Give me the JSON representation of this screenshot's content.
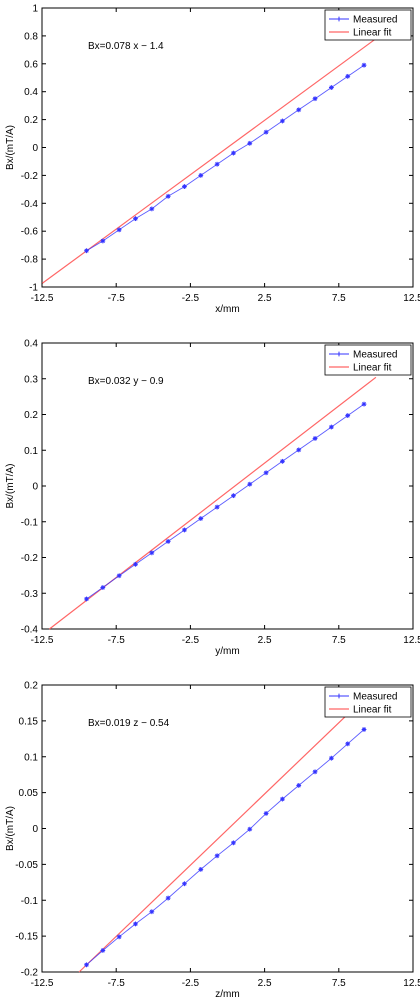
{
  "chart_data": [
    {
      "type": "line",
      "xlabel": "x/mm",
      "ylabel": "Bx/(mT/A)",
      "annotation": "Bx=0.078 x − 1.4",
      "xlim": [
        -12.5,
        12.5
      ],
      "ylim": [
        -1,
        1
      ],
      "xticks": [
        "-12.5",
        "-7.5",
        "-2.5",
        "2.5",
        "7.5",
        "12.5"
      ],
      "yticks": [
        "1",
        "0.8",
        "0.6",
        "0.4",
        "0.2",
        "0",
        "-0.2",
        "-0.4",
        "-0.6",
        "-0.8",
        "-1"
      ],
      "legend": [
        "Measured",
        "Linear fit"
      ],
      "legend_position": "top-right",
      "series": [
        {
          "name": "Measured",
          "marker": "asterisk",
          "color": "#3333ff",
          "x": [
            -9.5,
            -8.4,
            -7.3,
            -6.2,
            -5.1,
            -4.0,
            -2.9,
            -1.8,
            -0.7,
            0.4,
            1.5,
            2.6,
            3.7,
            4.8,
            5.9,
            7.0,
            8.1,
            9.2
          ],
          "y": [
            -0.74,
            -0.67,
            -0.59,
            -0.51,
            -0.44,
            -0.35,
            -0.28,
            -0.2,
            -0.12,
            -0.04,
            0.03,
            0.11,
            0.19,
            0.27,
            0.35,
            0.43,
            0.51,
            0.59
          ]
        },
        {
          "name": "Linear fit",
          "color": "#ff6666",
          "x": [
            -12.5,
            10.0
          ],
          "y": [
            -0.975,
            0.78
          ]
        }
      ]
    },
    {
      "type": "line",
      "xlabel": "y/mm",
      "ylabel": "Bx/(mT/A)",
      "annotation": "Bx=0.032 y − 0.9",
      "xlim": [
        -12.5,
        12.5
      ],
      "ylim": [
        -0.4,
        0.4
      ],
      "xticks": [
        "-12.5",
        "-7.5",
        "-2.5",
        "2.5",
        "7.5",
        "12.5"
      ],
      "yticks": [
        "0.4",
        "0.3",
        "0.2",
        "0.1",
        "0",
        "-0.1",
        "-0.2",
        "-0.3",
        "-0.4"
      ],
      "legend": [
        "Measured",
        "Linear fit"
      ],
      "legend_position": "top-right",
      "series": [
        {
          "name": "Measured",
          "marker": "asterisk",
          "color": "#3333ff",
          "x": [
            -9.5,
            -8.4,
            -7.3,
            -6.2,
            -5.1,
            -4.0,
            -2.9,
            -1.8,
            -0.7,
            0.4,
            1.5,
            2.6,
            3.7,
            4.8,
            5.9,
            7.0,
            8.1,
            9.2
          ],
          "y": [
            -0.316,
            -0.284,
            -0.251,
            -0.219,
            -0.187,
            -0.155,
            -0.123,
            -0.091,
            -0.059,
            -0.027,
            0.005,
            0.037,
            0.069,
            0.101,
            0.133,
            0.165,
            0.197,
            0.229
          ]
        },
        {
          "name": "Linear fit",
          "color": "#ff6666",
          "x": [
            -12.0,
            10.0
          ],
          "y": [
            -0.4,
            0.304
          ]
        }
      ]
    },
    {
      "type": "line",
      "xlabel": "z/mm",
      "ylabel": "Bx/(mT/A)",
      "annotation": "Bx=0.019 z − 0.54",
      "xlim": [
        -12.5,
        12.5
      ],
      "ylim": [
        -0.2,
        0.2
      ],
      "xticks": [
        "-12.5",
        "-7.5",
        "-2.5",
        "2.5",
        "7.5",
        "12.5"
      ],
      "yticks": [
        "0.2",
        "0.15",
        "0.1",
        "0.05",
        "0",
        "-0.05",
        "-0.1",
        "-0.15",
        "-0.2"
      ],
      "legend": [
        "Measured",
        "Linear fit"
      ],
      "legend_position": "top-right",
      "series": [
        {
          "name": "Measured",
          "marker": "asterisk",
          "color": "#3333ff",
          "x": [
            -9.5,
            -8.4,
            -7.3,
            -6.2,
            -5.1,
            -4.0,
            -2.9,
            -1.8,
            -0.7,
            0.4,
            1.5,
            2.6,
            3.7,
            4.8,
            5.9,
            7.0,
            8.1,
            9.2
          ],
          "y": [
            -0.19,
            -0.17,
            -0.151,
            -0.133,
            -0.116,
            -0.097,
            -0.077,
            -0.057,
            -0.038,
            -0.02,
            -0.001,
            0.021,
            0.041,
            0.06,
            0.079,
            0.098,
            0.118,
            0.138
          ]
        },
        {
          "name": "Linear fit",
          "color": "#ff6666",
          "x": [
            -10.0,
            10.0
          ],
          "y": [
            -0.2,
            0.197
          ]
        }
      ]
    }
  ]
}
